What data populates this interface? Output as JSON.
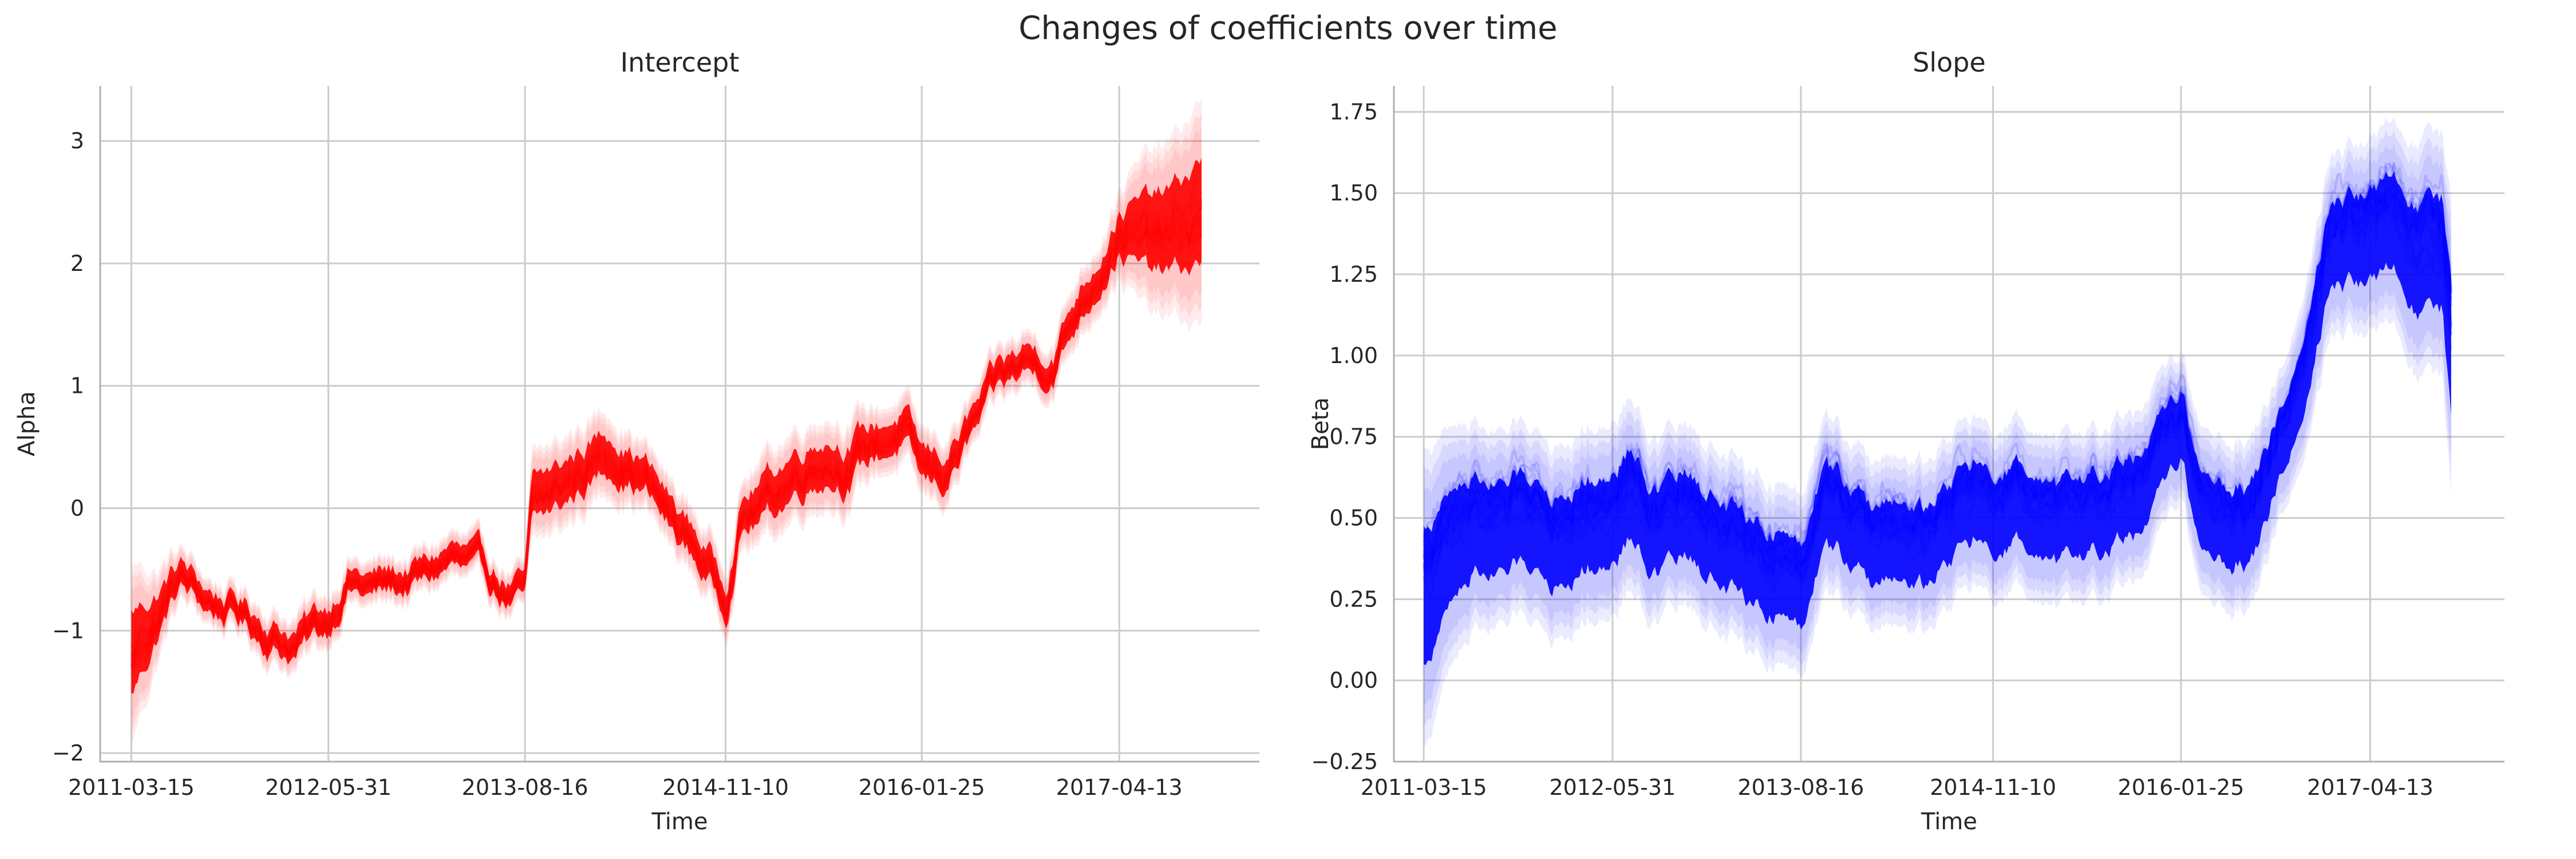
{
  "figure": {
    "title": "Changes of coefficients over time"
  },
  "chart_data": [
    {
      "type": "line",
      "title": "Intercept",
      "xlabel": "Time",
      "ylabel": "Alpha",
      "color": "#ff0000",
      "x_ticks": [
        "2011-03-15",
        "2012-05-31",
        "2013-08-16",
        "2014-11-10",
        "2016-01-25",
        "2017-04-13"
      ],
      "y_ticks": [
        -2,
        -1,
        0,
        1,
        2,
        3
      ],
      "y_tick_labels": [
        "−2",
        "−1",
        "0",
        "1",
        "2",
        "3"
      ],
      "xlim": [
        "2011-01-04",
        "2018-02-22"
      ],
      "ylim": [
        -2.07,
        3.45
      ],
      "grid": true,
      "series": [
        {
          "x": [
            "2011-03-15",
            "2011-05-15",
            "2011-07-01",
            "2011-09-01",
            "2011-11-15",
            "2012-01-15",
            "2012-03-15",
            "2012-05-31",
            "2012-07-15",
            "2012-09-01",
            "2012-11-01",
            "2013-01-01",
            "2013-03-01",
            "2013-05-15",
            "2013-07-15",
            "2013-08-16",
            "2013-09-01",
            "2013-11-01",
            "2014-01-01",
            "2014-03-01",
            "2014-05-15",
            "2014-07-15",
            "2014-09-01",
            "2014-11-10",
            "2014-12-15",
            "2015-02-15",
            "2015-04-15",
            "2015-06-15",
            "2015-08-15",
            "2015-10-15",
            "2015-12-15",
            "2016-01-25",
            "2016-03-15",
            "2016-05-15",
            "2016-07-15",
            "2016-09-15",
            "2016-11-15",
            "2017-01-15",
            "2017-03-01",
            "2017-04-13",
            "2017-06-15",
            "2017-08-15",
            "2017-10-15"
          ],
          "mean": [
            -1.2,
            -0.85,
            -0.55,
            -0.75,
            -0.85,
            -1.0,
            -1.1,
            -0.9,
            -0.55,
            -0.65,
            -0.6,
            -0.55,
            -0.4,
            -0.55,
            -0.7,
            -0.7,
            0.0,
            0.15,
            0.35,
            0.5,
            0.25,
            -0.1,
            -0.3,
            -0.7,
            -0.05,
            0.1,
            0.3,
            0.45,
            0.4,
            0.55,
            0.65,
            0.3,
            0.3,
            0.65,
            1.0,
            1.2,
            1.2,
            1.7,
            2.0,
            2.3,
            2.2,
            2.25,
            2.4
          ],
          "spread": [
            0.4,
            0.2,
            0.12,
            0.1,
            0.1,
            0.12,
            0.12,
            0.12,
            0.1,
            0.1,
            0.1,
            0.1,
            0.1,
            0.1,
            0.1,
            0.1,
            0.2,
            0.2,
            0.2,
            0.18,
            0.15,
            0.15,
            0.15,
            0.15,
            0.15,
            0.2,
            0.2,
            0.2,
            0.2,
            0.15,
            0.15,
            0.15,
            0.15,
            0.12,
            0.12,
            0.12,
            0.12,
            0.15,
            0.15,
            0.2,
            0.35,
            0.4,
            0.5
          ]
        }
      ]
    },
    {
      "type": "line",
      "title": "Slope",
      "xlabel": "Time",
      "ylabel": "Beta",
      "color": "#0000ff",
      "x_ticks": [
        "2011-03-15",
        "2012-05-31",
        "2013-08-16",
        "2014-11-10",
        "2016-01-25",
        "2017-04-13"
      ],
      "y_ticks": [
        -0.25,
        0.0,
        0.25,
        0.5,
        0.75,
        1.0,
        1.25,
        1.5,
        1.75
      ],
      "y_tick_labels": [
        "−0.25",
        "0.00",
        "0.25",
        "0.50",
        "0.75",
        "1.00",
        "1.25",
        "1.50",
        "1.75"
      ],
      "xlim": [
        "2011-01-04",
        "2018-02-22"
      ],
      "ylim": [
        -0.25,
        1.83
      ],
      "grid": true,
      "series": [
        {
          "x": [
            "2011-03-15",
            "2011-05-15",
            "2011-07-15",
            "2011-09-15",
            "2011-11-15",
            "2012-01-15",
            "2012-03-15",
            "2012-05-31",
            "2012-07-15",
            "2012-09-15",
            "2012-11-15",
            "2013-01-15",
            "2013-03-15",
            "2013-05-15",
            "2013-07-15",
            "2013-08-16",
            "2013-10-01",
            "2013-12-01",
            "2014-02-01",
            "2014-04-01",
            "2014-06-01",
            "2014-08-01",
            "2014-10-01",
            "2014-11-10",
            "2015-01-01",
            "2015-03-01",
            "2015-05-01",
            "2015-07-01",
            "2015-09-01",
            "2015-11-01",
            "2016-01-25",
            "2016-03-15",
            "2016-05-15",
            "2016-07-15",
            "2016-09-15",
            "2016-11-15",
            "2017-01-15",
            "2017-04-13",
            "2017-06-15",
            "2017-08-15",
            "2017-10-01",
            "2017-10-20"
          ],
          "mean": [
            0.25,
            0.4,
            0.5,
            0.45,
            0.5,
            0.45,
            0.5,
            0.5,
            0.6,
            0.45,
            0.5,
            0.45,
            0.4,
            0.35,
            0.35,
            0.3,
            0.55,
            0.5,
            0.4,
            0.45,
            0.4,
            0.5,
            0.55,
            0.5,
            0.55,
            0.45,
            0.45,
            0.5,
            0.55,
            0.55,
            0.8,
            0.5,
            0.5,
            0.5,
            0.75,
            1.0,
            1.4,
            1.35,
            1.4,
            1.3,
            1.3,
            1.0
          ],
          "spread": [
            0.25,
            0.2,
            0.17,
            0.16,
            0.16,
            0.16,
            0.16,
            0.16,
            0.16,
            0.15,
            0.15,
            0.15,
            0.15,
            0.15,
            0.15,
            0.15,
            0.15,
            0.14,
            0.14,
            0.14,
            0.14,
            0.14,
            0.14,
            0.14,
            0.14,
            0.14,
            0.14,
            0.14,
            0.14,
            0.14,
            0.12,
            0.14,
            0.14,
            0.14,
            0.12,
            0.14,
            0.15,
            0.16,
            0.17,
            0.2,
            0.2,
            0.25
          ]
        }
      ]
    }
  ]
}
